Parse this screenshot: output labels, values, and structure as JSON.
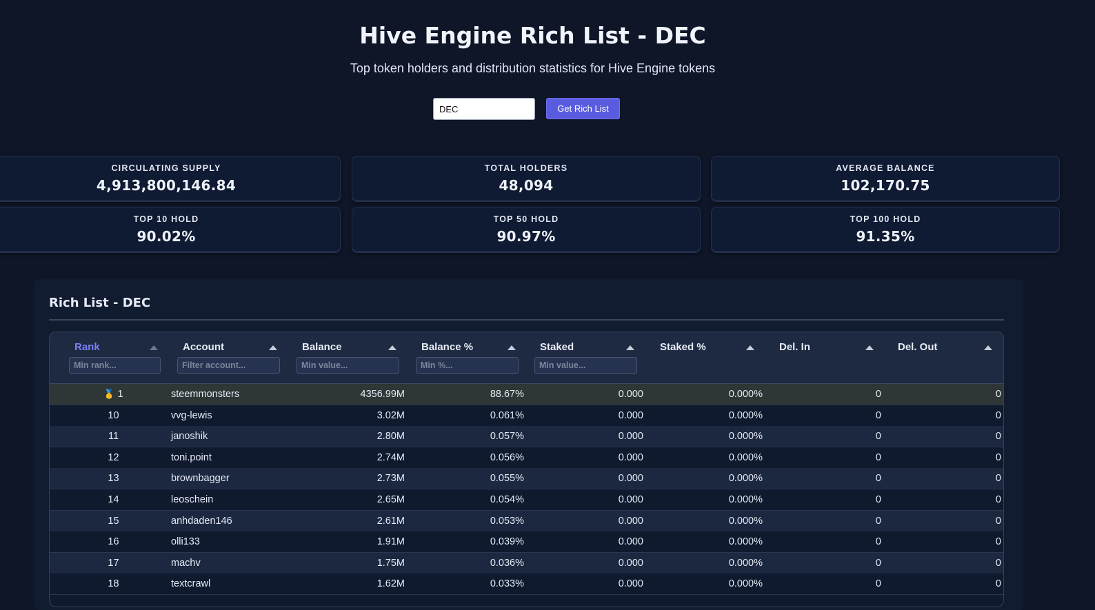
{
  "header": {
    "title": "Hive Engine Rich List - DEC",
    "subtitle": "Top token holders and distribution statistics for Hive Engine tokens"
  },
  "search": {
    "value": "DEC",
    "button_label": "Get Rich List"
  },
  "stats": [
    {
      "label": "CIRCULATING SUPPLY",
      "value": "4,913,800,146.84"
    },
    {
      "label": "TOTAL HOLDERS",
      "value": "48,094"
    },
    {
      "label": "AVERAGE BALANCE",
      "value": "102,170.75"
    },
    {
      "label": "TOP 10 HOLD",
      "value": "90.02%"
    },
    {
      "label": "TOP 50 HOLD",
      "value": "90.97%"
    },
    {
      "label": "TOP 100 HOLD",
      "value": "91.35%"
    }
  ],
  "panel": {
    "title": "Rich List - DEC"
  },
  "table": {
    "columns": [
      {
        "label": "Rank",
        "placeholder": "Min rank...",
        "active": true
      },
      {
        "label": "Account",
        "placeholder": "Filter account..."
      },
      {
        "label": "Balance",
        "placeholder": "Min value..."
      },
      {
        "label": "Balance %",
        "placeholder": "Min %..."
      },
      {
        "label": "Staked",
        "placeholder": "Min value..."
      },
      {
        "label": "Staked %",
        "placeholder": ""
      },
      {
        "label": "Del. In",
        "placeholder": ""
      },
      {
        "label": "Del. Out",
        "placeholder": ""
      }
    ],
    "rows": [
      {
        "rank": "1",
        "medal": "🥇",
        "account": "steemmonsters",
        "balance": "4356.99M",
        "balance_pct": "88.67%",
        "staked": "0.000",
        "staked_pct": "0.000%",
        "del_in": "0",
        "del_out": "0"
      },
      {
        "rank": "10",
        "account": "vvg-lewis",
        "balance": "3.02M",
        "balance_pct": "0.061%",
        "staked": "0.000",
        "staked_pct": "0.000%",
        "del_in": "0",
        "del_out": "0"
      },
      {
        "rank": "11",
        "account": "janoshik",
        "balance": "2.80M",
        "balance_pct": "0.057%",
        "staked": "0.000",
        "staked_pct": "0.000%",
        "del_in": "0",
        "del_out": "0"
      },
      {
        "rank": "12",
        "account": "toni.point",
        "balance": "2.74M",
        "balance_pct": "0.056%",
        "staked": "0.000",
        "staked_pct": "0.000%",
        "del_in": "0",
        "del_out": "0"
      },
      {
        "rank": "13",
        "account": "brownbagger",
        "balance": "2.73M",
        "balance_pct": "0.055%",
        "staked": "0.000",
        "staked_pct": "0.000%",
        "del_in": "0",
        "del_out": "0"
      },
      {
        "rank": "14",
        "account": "leoschein",
        "balance": "2.65M",
        "balance_pct": "0.054%",
        "staked": "0.000",
        "staked_pct": "0.000%",
        "del_in": "0",
        "del_out": "0"
      },
      {
        "rank": "15",
        "account": "anhdaden146",
        "balance": "2.61M",
        "balance_pct": "0.053%",
        "staked": "0.000",
        "staked_pct": "0.000%",
        "del_in": "0",
        "del_out": "0"
      },
      {
        "rank": "16",
        "account": "olli133",
        "balance": "1.91M",
        "balance_pct": "0.039%",
        "staked": "0.000",
        "staked_pct": "0.000%",
        "del_in": "0",
        "del_out": "0"
      },
      {
        "rank": "17",
        "account": "machv",
        "balance": "1.75M",
        "balance_pct": "0.036%",
        "staked": "0.000",
        "staked_pct": "0.000%",
        "del_in": "0",
        "del_out": "0"
      },
      {
        "rank": "18",
        "account": "textcrawl",
        "balance": "1.62M",
        "balance_pct": "0.033%",
        "staked": "0.000",
        "staked_pct": "0.000%",
        "del_in": "0",
        "del_out": "0"
      }
    ]
  },
  "colors": {
    "background": "#0e1628",
    "accent": "#5a5ce0",
    "active_header": "#7b7ff5",
    "top_row": "#2e3636"
  }
}
